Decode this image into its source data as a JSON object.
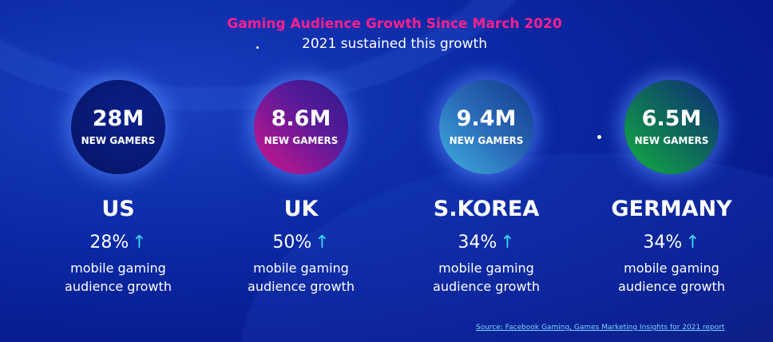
{
  "title": "Gaming Audience Growth Since March 2020",
  "subtitle": "2021 sustained this growth",
  "markets": [
    {
      "value": "28M",
      "label": "NEW GAMERS",
      "country": "US",
      "growth": "28%",
      "desc1": "mobile gaming",
      "desc2": "audience growth",
      "color": "#0a1f8a"
    },
    {
      "value": "8.6M",
      "label": "NEW GAMERS",
      "country": "UK",
      "growth": "50%",
      "desc1": "mobile gaming",
      "desc2": "audience growth",
      "color": "#b0148e"
    },
    {
      "value": "9.4M",
      "label": "NEW GAMERS",
      "country": "S.KOREA",
      "growth": "34%",
      "desc1": "mobile gaming",
      "desc2": "audience growth",
      "color": "#3aa0d8"
    },
    {
      "value": "6.5M",
      "label": "NEW GAMERS",
      "country": "GERMANY",
      "growth": "34%",
      "desc1": "mobile gaming",
      "desc2": "audience growth",
      "color": "#0fa040"
    }
  ],
  "arrow": "↑",
  "source": "Source: Facebook Gaming, Games Marketing Insights for 2021 report"
}
